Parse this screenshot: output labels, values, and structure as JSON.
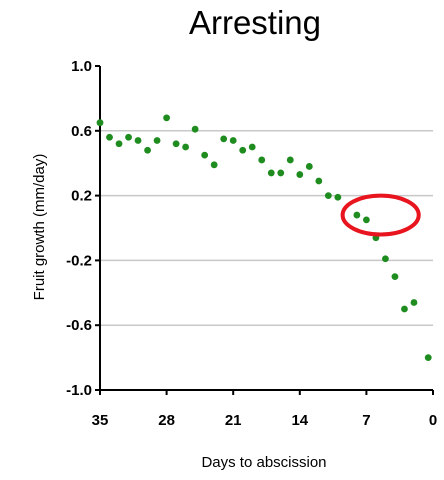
{
  "chart_data": {
    "type": "scatter",
    "title": "Arresting",
    "xlabel": "Days to abscission",
    "ylabel": "Fruit growth (mm/day)",
    "xlim": [
      35,
      0
    ],
    "ylim": [
      -1.0,
      1.0
    ],
    "x_reversed": true,
    "xticks": [
      35,
      28,
      21,
      14,
      7,
      0
    ],
    "xtick_labels": [
      "35",
      "28",
      "21",
      "14",
      "7",
      "0"
    ],
    "yticks": [
      1.0,
      0.6,
      0.2,
      -0.2,
      -0.6,
      -1.0
    ],
    "ytick_labels": [
      "1.0",
      "0.6",
      "0.2",
      "-0.2",
      "-0.6",
      "-1.0"
    ],
    "grid": "horizontal",
    "series": [
      {
        "color": "#1e8c1e",
        "points": [
          {
            "x": 35.0,
            "y": 0.65
          },
          {
            "x": 34.0,
            "y": 0.56
          },
          {
            "x": 33.0,
            "y": 0.52
          },
          {
            "x": 32.0,
            "y": 0.56
          },
          {
            "x": 31.0,
            "y": 0.54
          },
          {
            "x": 30.0,
            "y": 0.48
          },
          {
            "x": 29.0,
            "y": 0.54
          },
          {
            "x": 28.0,
            "y": 0.68
          },
          {
            "x": 27.0,
            "y": 0.52
          },
          {
            "x": 26.0,
            "y": 0.5
          },
          {
            "x": 25.0,
            "y": 0.61
          },
          {
            "x": 24.0,
            "y": 0.45
          },
          {
            "x": 23.0,
            "y": 0.39
          },
          {
            "x": 22.0,
            "y": 0.55
          },
          {
            "x": 21.0,
            "y": 0.54
          },
          {
            "x": 20.0,
            "y": 0.48
          },
          {
            "x": 19.0,
            "y": 0.5
          },
          {
            "x": 18.0,
            "y": 0.42
          },
          {
            "x": 17.0,
            "y": 0.34
          },
          {
            "x": 16.0,
            "y": 0.34
          },
          {
            "x": 15.0,
            "y": 0.42
          },
          {
            "x": 14.0,
            "y": 0.33
          },
          {
            "x": 13.0,
            "y": 0.38
          },
          {
            "x": 12.0,
            "y": 0.29
          },
          {
            "x": 11.0,
            "y": 0.2
          },
          {
            "x": 10.0,
            "y": 0.19
          },
          {
            "x": 8.0,
            "y": 0.08
          },
          {
            "x": 7.0,
            "y": 0.05
          },
          {
            "x": 6.0,
            "y": -0.06
          },
          {
            "x": 5.0,
            "y": -0.19
          },
          {
            "x": 4.0,
            "y": -0.3
          },
          {
            "x": 3.0,
            "y": -0.5
          },
          {
            "x": 2.0,
            "y": -0.46
          },
          {
            "x": 0.5,
            "y": -0.8
          }
        ]
      }
    ],
    "highlight": {
      "shape": "ellipse",
      "color": "#e8141e",
      "center": {
        "x": 5.5,
        "y": 0.08
      },
      "radius": {
        "x": 4.0,
        "y": 0.12
      }
    }
  }
}
